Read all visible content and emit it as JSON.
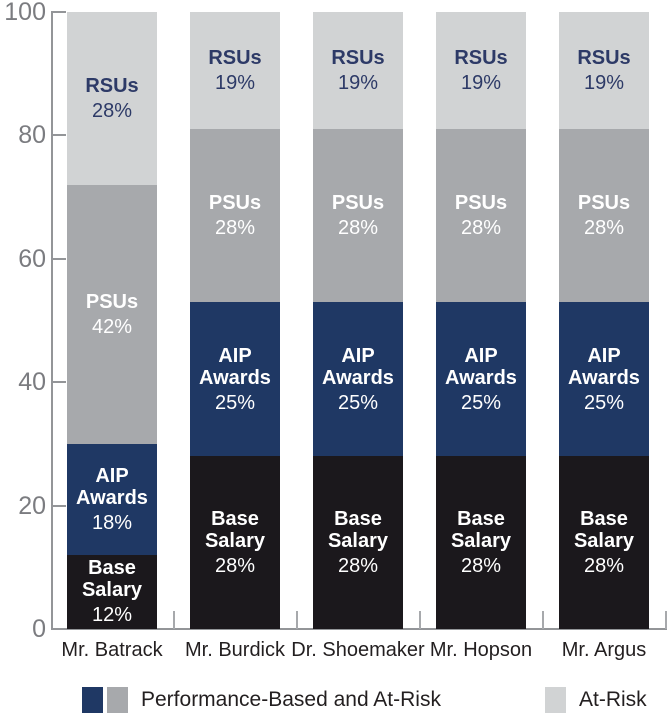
{
  "chart_data": {
    "type": "bar",
    "subtype": "stacked-vertical",
    "title": "",
    "xlabel": "",
    "ylabel": "",
    "ylim": [
      0,
      100
    ],
    "grid": false,
    "legend_position": "bottom",
    "categories": [
      "Mr. Batrack",
      "Mr. Burdick",
      "Dr. Shoemaker",
      "Mr. Hopson",
      "Mr. Argus"
    ],
    "series": [
      {
        "name": "Base Salary",
        "color": "#1b181c",
        "text_color": "#ffffff",
        "values": [
          12,
          28,
          28,
          28,
          28
        ],
        "value_labels": [
          "12%",
          "28%",
          "28%",
          "28%",
          "28%"
        ]
      },
      {
        "name": "AIP Awards",
        "color": "#1f3864",
        "text_color": "#ffffff",
        "values": [
          18,
          25,
          25,
          25,
          25
        ],
        "value_labels": [
          "18%",
          "25%",
          "25%",
          "25%",
          "25%"
        ]
      },
      {
        "name": "PSUs",
        "color": "#a7a9ac",
        "text_color": "#ffffff",
        "values": [
          42,
          28,
          28,
          28,
          28
        ],
        "value_labels": [
          "42%",
          "28%",
          "28%",
          "28%",
          "28%"
        ]
      },
      {
        "name": "RSUs",
        "color": "#d1d3d4",
        "text_color": "#2d3a67",
        "values": [
          28,
          19,
          19,
          19,
          19
        ],
        "value_labels": [
          "28%",
          "19%",
          "19%",
          "19%",
          "19%"
        ]
      }
    ],
    "yticks": [
      0,
      20,
      40,
      60,
      80,
      100
    ],
    "ytick_labels": [
      "0",
      "20",
      "40",
      "60",
      "80",
      "100"
    ],
    "legend": [
      {
        "label": "Performance-Based and At-Risk",
        "colors": [
          "#1f3864",
          "#a7a9ac"
        ]
      },
      {
        "label": "At-Risk",
        "colors": [
          "#d1d3d4"
        ]
      }
    ],
    "axis_color": "#939598",
    "minor_tick_color": "#a7a9ac",
    "axis_label_color": "#7b7c80",
    "category_label_color": "#231f20"
  }
}
